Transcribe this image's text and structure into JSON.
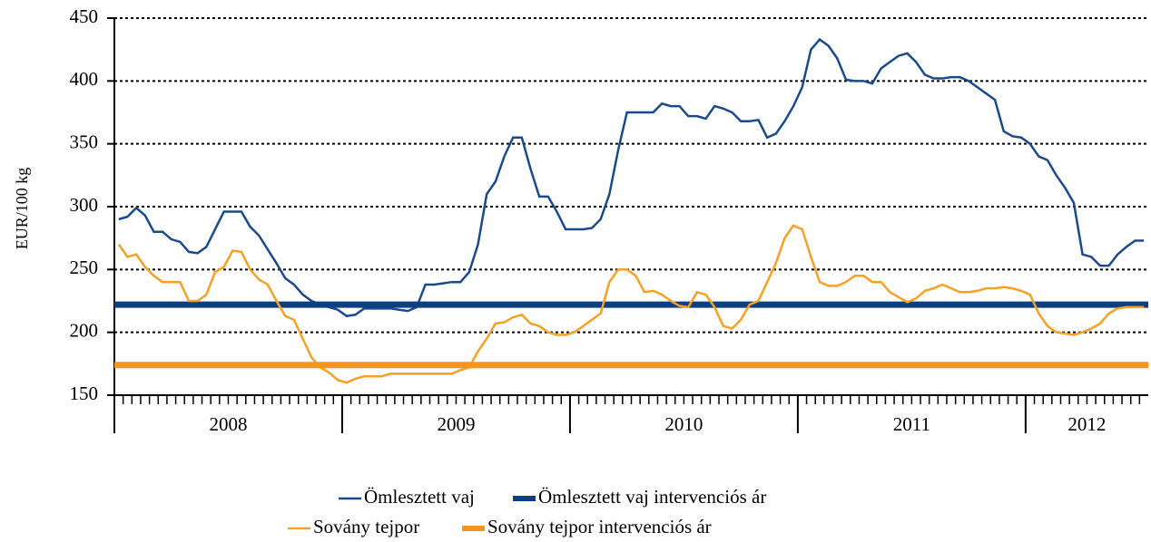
{
  "chart_data": {
    "type": "line",
    "ylabel": "EUR/100 kg",
    "categories": [
      "2008",
      "2009",
      "2010",
      "2011",
      "2012"
    ],
    "ylim": [
      150,
      450
    ],
    "yticks": [
      150,
      200,
      250,
      300,
      350,
      400,
      450
    ],
    "grid": true,
    "series": [
      {
        "name": "Ömlesztett vaj",
        "color": "#1b4a8a",
        "values": [
          [
            290,
            292,
            299,
            293,
            280,
            280,
            274,
            272,
            264,
            263,
            268,
            282,
            296,
            296,
            296,
            284,
            277,
            266,
            255,
            243,
            238,
            230,
            225,
            222,
            220,
            218
          ],
          [
            213,
            214,
            219,
            219,
            219,
            219,
            218,
            217,
            220,
            238,
            238,
            239,
            240,
            240,
            248,
            270,
            310,
            320,
            340,
            355,
            355,
            330,
            308,
            308,
            296,
            282
          ],
          [
            282,
            282,
            283,
            290,
            310,
            345,
            375,
            375,
            375,
            375,
            382,
            380,
            380,
            372,
            372,
            370,
            380,
            378,
            375,
            368,
            368,
            369,
            355,
            358,
            368,
            380
          ],
          [
            395,
            425,
            433,
            428,
            418,
            401,
            400,
            400,
            398,
            410,
            415,
            420,
            422,
            415,
            405,
            402,
            402,
            403,
            403,
            400,
            395,
            390,
            385,
            360,
            356,
            355
          ],
          [
            350,
            340,
            337,
            325,
            315,
            303,
            262,
            260,
            253,
            253,
            262,
            268,
            273,
            273
          ]
        ]
      },
      {
        "name": "Ömlesztett vaj intervenciós ár",
        "color": "#0e3f80",
        "value": 222
      },
      {
        "name": "Sovány tejpor",
        "color": "#f4a226",
        "values": [
          [
            270,
            260,
            262,
            252,
            245,
            240,
            240,
            240,
            225,
            225,
            230,
            248,
            252,
            265,
            264,
            250,
            242,
            238,
            225,
            213,
            210,
            195,
            180,
            172,
            168,
            162
          ],
          [
            160,
            163,
            165,
            165,
            165,
            167,
            167,
            167,
            167,
            167,
            167,
            167,
            167,
            170,
            172,
            185,
            195,
            207,
            208,
            212,
            214,
            207,
            205,
            200,
            198,
            198
          ],
          [
            200,
            205,
            210,
            215,
            240,
            250,
            250,
            245,
            232,
            233,
            230,
            225,
            221,
            220,
            232,
            230,
            220,
            205,
            203,
            210,
            222,
            225,
            240,
            255,
            275,
            285
          ],
          [
            282,
            260,
            240,
            237,
            237,
            240,
            245,
            245,
            240,
            240,
            232,
            228,
            224,
            227,
            233,
            235,
            238,
            235,
            232,
            232,
            233,
            235,
            235,
            236,
            235,
            233
          ],
          [
            230,
            215,
            205,
            200,
            199,
            198,
            200,
            203,
            207,
            215,
            219,
            220,
            220,
            220
          ]
        ]
      },
      {
        "name": "Sovány tejpor intervenciós ár",
        "color": "#f7941d",
        "value": 174
      }
    ]
  }
}
